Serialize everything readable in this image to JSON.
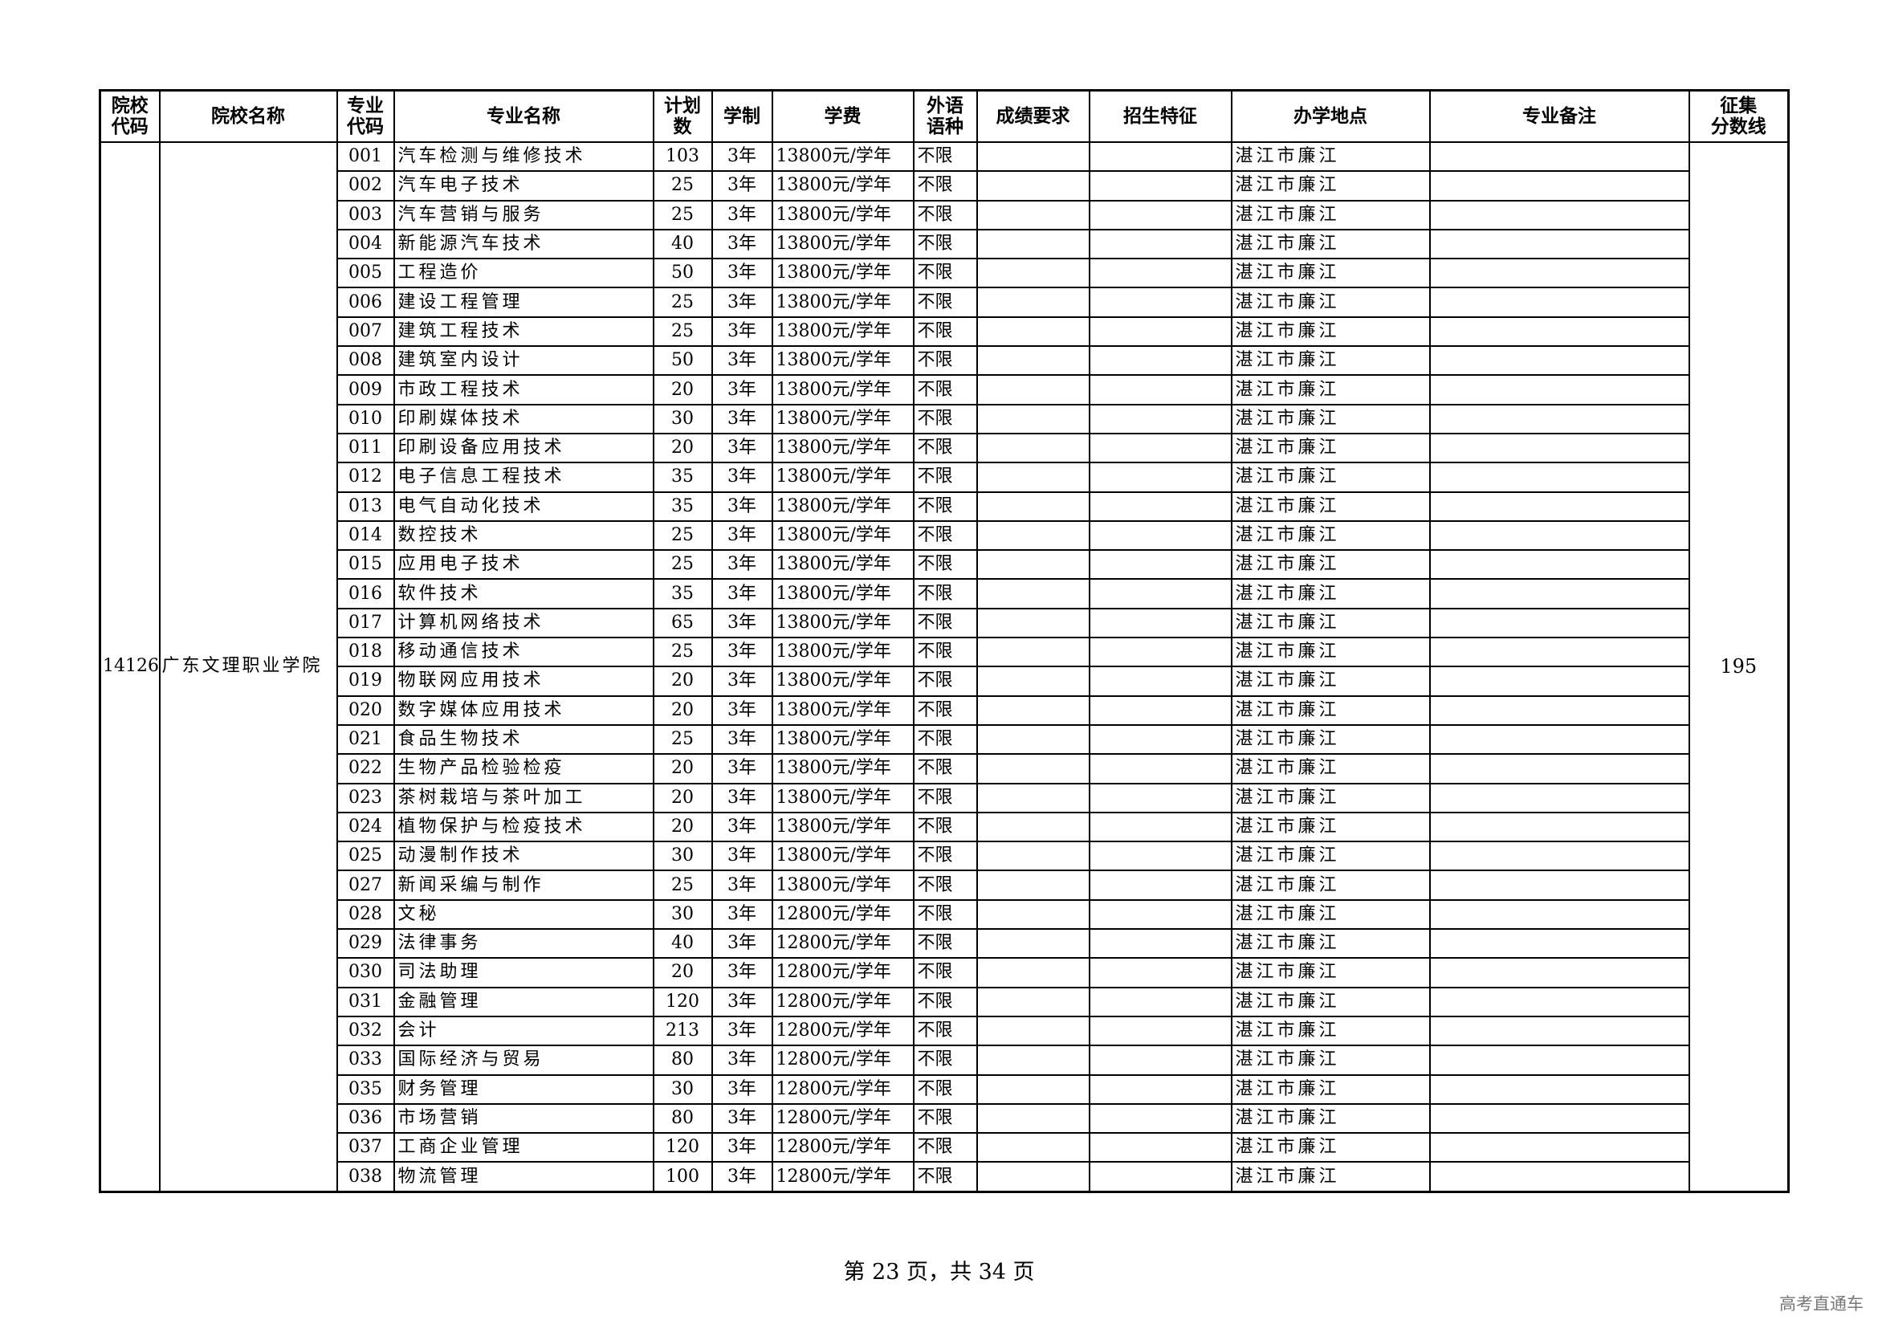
{
  "headers": [
    "院校\n代码",
    "院校名称",
    "专业\n代码",
    "专业名称",
    "计划\n数",
    "学制",
    "学费",
    "外语\n语种",
    "成绩要求",
    "招生特征",
    "办学地点",
    "专业备注",
    "征集\n分数线"
  ],
  "school": {
    "code": "14126",
    "name": "广东文理职业学院",
    "cutoff": "195"
  },
  "rows": [
    {
      "code": "001",
      "name": "汽车检测与维修技术",
      "plan": "103",
      "years": "3年",
      "fee": "13800元/学年",
      "lang": "不限",
      "score": "",
      "feature": "",
      "location": "湛江市廉江",
      "note": ""
    },
    {
      "code": "002",
      "name": "汽车电子技术",
      "plan": "25",
      "years": "3年",
      "fee": "13800元/学年",
      "lang": "不限",
      "score": "",
      "feature": "",
      "location": "湛江市廉江",
      "note": ""
    },
    {
      "code": "003",
      "name": "汽车营销与服务",
      "plan": "25",
      "years": "3年",
      "fee": "13800元/学年",
      "lang": "不限",
      "score": "",
      "feature": "",
      "location": "湛江市廉江",
      "note": ""
    },
    {
      "code": "004",
      "name": "新能源汽车技术",
      "plan": "40",
      "years": "3年",
      "fee": "13800元/学年",
      "lang": "不限",
      "score": "",
      "feature": "",
      "location": "湛江市廉江",
      "note": ""
    },
    {
      "code": "005",
      "name": "工程造价",
      "plan": "50",
      "years": "3年",
      "fee": "13800元/学年",
      "lang": "不限",
      "score": "",
      "feature": "",
      "location": "湛江市廉江",
      "note": ""
    },
    {
      "code": "006",
      "name": "建设工程管理",
      "plan": "25",
      "years": "3年",
      "fee": "13800元/学年",
      "lang": "不限",
      "score": "",
      "feature": "",
      "location": "湛江市廉江",
      "note": ""
    },
    {
      "code": "007",
      "name": "建筑工程技术",
      "plan": "25",
      "years": "3年",
      "fee": "13800元/学年",
      "lang": "不限",
      "score": "",
      "feature": "",
      "location": "湛江市廉江",
      "note": ""
    },
    {
      "code": "008",
      "name": "建筑室内设计",
      "plan": "50",
      "years": "3年",
      "fee": "13800元/学年",
      "lang": "不限",
      "score": "",
      "feature": "",
      "location": "湛江市廉江",
      "note": ""
    },
    {
      "code": "009",
      "name": "市政工程技术",
      "plan": "20",
      "years": "3年",
      "fee": "13800元/学年",
      "lang": "不限",
      "score": "",
      "feature": "",
      "location": "湛江市廉江",
      "note": ""
    },
    {
      "code": "010",
      "name": "印刷媒体技术",
      "plan": "30",
      "years": "3年",
      "fee": "13800元/学年",
      "lang": "不限",
      "score": "",
      "feature": "",
      "location": "湛江市廉江",
      "note": ""
    },
    {
      "code": "011",
      "name": "印刷设备应用技术",
      "plan": "20",
      "years": "3年",
      "fee": "13800元/学年",
      "lang": "不限",
      "score": "",
      "feature": "",
      "location": "湛江市廉江",
      "note": ""
    },
    {
      "code": "012",
      "name": "电子信息工程技术",
      "plan": "35",
      "years": "3年",
      "fee": "13800元/学年",
      "lang": "不限",
      "score": "",
      "feature": "",
      "location": "湛江市廉江",
      "note": ""
    },
    {
      "code": "013",
      "name": "电气自动化技术",
      "plan": "35",
      "years": "3年",
      "fee": "13800元/学年",
      "lang": "不限",
      "score": "",
      "feature": "",
      "location": "湛江市廉江",
      "note": ""
    },
    {
      "code": "014",
      "name": "数控技术",
      "plan": "25",
      "years": "3年",
      "fee": "13800元/学年",
      "lang": "不限",
      "score": "",
      "feature": "",
      "location": "湛江市廉江",
      "note": ""
    },
    {
      "code": "015",
      "name": "应用电子技术",
      "plan": "25",
      "years": "3年",
      "fee": "13800元/学年",
      "lang": "不限",
      "score": "",
      "feature": "",
      "location": "湛江市廉江",
      "note": ""
    },
    {
      "code": "016",
      "name": "软件技术",
      "plan": "35",
      "years": "3年",
      "fee": "13800元/学年",
      "lang": "不限",
      "score": "",
      "feature": "",
      "location": "湛江市廉江",
      "note": ""
    },
    {
      "code": "017",
      "name": "计算机网络技术",
      "plan": "65",
      "years": "3年",
      "fee": "13800元/学年",
      "lang": "不限",
      "score": "",
      "feature": "",
      "location": "湛江市廉江",
      "note": ""
    },
    {
      "code": "018",
      "name": "移动通信技术",
      "plan": "25",
      "years": "3年",
      "fee": "13800元/学年",
      "lang": "不限",
      "score": "",
      "feature": "",
      "location": "湛江市廉江",
      "note": ""
    },
    {
      "code": "019",
      "name": "物联网应用技术",
      "plan": "20",
      "years": "3年",
      "fee": "13800元/学年",
      "lang": "不限",
      "score": "",
      "feature": "",
      "location": "湛江市廉江",
      "note": ""
    },
    {
      "code": "020",
      "name": "数字媒体应用技术",
      "plan": "20",
      "years": "3年",
      "fee": "13800元/学年",
      "lang": "不限",
      "score": "",
      "feature": "",
      "location": "湛江市廉江",
      "note": ""
    },
    {
      "code": "021",
      "name": "食品生物技术",
      "plan": "25",
      "years": "3年",
      "fee": "13800元/学年",
      "lang": "不限",
      "score": "",
      "feature": "",
      "location": "湛江市廉江",
      "note": ""
    },
    {
      "code": "022",
      "name": "生物产品检验检疫",
      "plan": "20",
      "years": "3年",
      "fee": "13800元/学年",
      "lang": "不限",
      "score": "",
      "feature": "",
      "location": "湛江市廉江",
      "note": ""
    },
    {
      "code": "023",
      "name": "茶树栽培与茶叶加工",
      "plan": "20",
      "years": "3年",
      "fee": "13800元/学年",
      "lang": "不限",
      "score": "",
      "feature": "",
      "location": "湛江市廉江",
      "note": ""
    },
    {
      "code": "024",
      "name": "植物保护与检疫技术",
      "plan": "20",
      "years": "3年",
      "fee": "13800元/学年",
      "lang": "不限",
      "score": "",
      "feature": "",
      "location": "湛江市廉江",
      "note": ""
    },
    {
      "code": "025",
      "name": "动漫制作技术",
      "plan": "30",
      "years": "3年",
      "fee": "13800元/学年",
      "lang": "不限",
      "score": "",
      "feature": "",
      "location": "湛江市廉江",
      "note": ""
    },
    {
      "code": "027",
      "name": "新闻采编与制作",
      "plan": "25",
      "years": "3年",
      "fee": "13800元/学年",
      "lang": "不限",
      "score": "",
      "feature": "",
      "location": "湛江市廉江",
      "note": ""
    },
    {
      "code": "028",
      "name": "文秘",
      "plan": "30",
      "years": "3年",
      "fee": "12800元/学年",
      "lang": "不限",
      "score": "",
      "feature": "",
      "location": "湛江市廉江",
      "note": ""
    },
    {
      "code": "029",
      "name": "法律事务",
      "plan": "40",
      "years": "3年",
      "fee": "12800元/学年",
      "lang": "不限",
      "score": "",
      "feature": "",
      "location": "湛江市廉江",
      "note": ""
    },
    {
      "code": "030",
      "name": "司法助理",
      "plan": "20",
      "years": "3年",
      "fee": "12800元/学年",
      "lang": "不限",
      "score": "",
      "feature": "",
      "location": "湛江市廉江",
      "note": ""
    },
    {
      "code": "031",
      "name": "金融管理",
      "plan": "120",
      "years": "3年",
      "fee": "12800元/学年",
      "lang": "不限",
      "score": "",
      "feature": "",
      "location": "湛江市廉江",
      "note": ""
    },
    {
      "code": "032",
      "name": "会计",
      "plan": "213",
      "years": "3年",
      "fee": "12800元/学年",
      "lang": "不限",
      "score": "",
      "feature": "",
      "location": "湛江市廉江",
      "note": ""
    },
    {
      "code": "033",
      "name": "国际经济与贸易",
      "plan": "80",
      "years": "3年",
      "fee": "12800元/学年",
      "lang": "不限",
      "score": "",
      "feature": "",
      "location": "湛江市廉江",
      "note": ""
    },
    {
      "code": "035",
      "name": "财务管理",
      "plan": "30",
      "years": "3年",
      "fee": "12800元/学年",
      "lang": "不限",
      "score": "",
      "feature": "",
      "location": "湛江市廉江",
      "note": ""
    },
    {
      "code": "036",
      "name": "市场营销",
      "plan": "80",
      "years": "3年",
      "fee": "12800元/学年",
      "lang": "不限",
      "score": "",
      "feature": "",
      "location": "湛江市廉江",
      "note": ""
    },
    {
      "code": "037",
      "name": "工商企业管理",
      "plan": "120",
      "years": "3年",
      "fee": "12800元/学年",
      "lang": "不限",
      "score": "",
      "feature": "",
      "location": "湛江市廉江",
      "note": ""
    },
    {
      "code": "038",
      "name": "物流管理",
      "plan": "100",
      "years": "3年",
      "fee": "12800元/学年",
      "lang": "不限",
      "score": "",
      "feature": "",
      "location": "湛江市廉江",
      "note": ""
    }
  ],
  "footer": {
    "page_label": "第 23 页，共 34 页"
  },
  "watermark": "高考直通车"
}
